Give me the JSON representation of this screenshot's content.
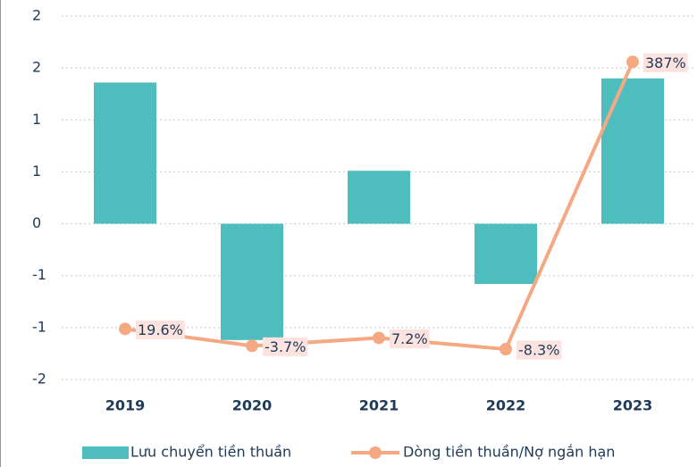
{
  "chart_data": {
    "type": "bar",
    "categories": [
      "2019",
      "2020",
      "2021",
      "2022",
      "2023"
    ],
    "series": [
      {
        "name": "Lưu chuyển tiền thuần",
        "color": "#4dbdbd",
        "values": [
          1.36,
          -1.12,
          0.51,
          -0.58,
          1.4
        ]
      },
      {
        "name": "Dòng tiền thuần/Nợ ngắn hạn",
        "color": "#f5a982",
        "type": "line",
        "axis": "y2",
        "values": [
          19.6,
          -3.7,
          7.2,
          -8.3,
          387
        ],
        "value_labels": [
          "19.6%",
          "-3.7%",
          "7.2%",
          "-8.3%",
          "387%"
        ]
      }
    ],
    "ylim": [
      -1.5,
      2
    ],
    "yticks": [
      {
        "value": -1.5,
        "label": "-2"
      },
      -1,
      {
        "value": -0.5,
        "label": "-1"
      },
      0,
      {
        "value": 0.5,
        "label": "1"
      },
      1,
      {
        "value": 1.5,
        "label": "2"
      },
      2
    ],
    "y2lim": [
      -50,
      450
    ],
    "grid": true,
    "legend": "bottom"
  }
}
